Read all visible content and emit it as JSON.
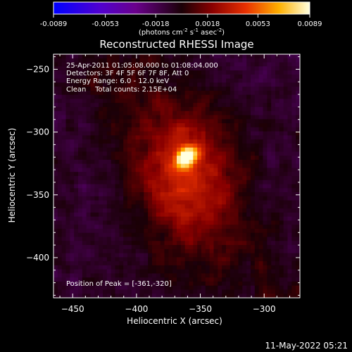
{
  "chart_data": {
    "type": "heatmap",
    "title": "Reconstructed RHESSI Image",
    "xlabel": "Heliocentric X (arcsec)",
    "ylabel": "Heliocentric Y (arcsec)",
    "xlim": [
      -465,
      -272
    ],
    "ylim": [
      -432,
      -238
    ],
    "x_ticks": [
      -450,
      -400,
      -350,
      -300
    ],
    "y_ticks": [
      -250,
      -300,
      -350,
      -400
    ],
    "colorbar": {
      "min": -0.0089,
      "max": 0.0089,
      "ticks": [
        "-0.0089",
        "-0.0053",
        "-0.0018",
        "0.0018",
        "0.0053",
        "0.0089"
      ],
      "unit_text": "(photons cm",
      "unit_exp1": "-2",
      "unit_mid1": " s",
      "unit_exp2": "-1",
      "unit_mid2": " asec",
      "unit_exp3": "-2",
      "unit_end": ")"
    },
    "annotations": [
      "25-Apr-2011 01:05:08.000 to 01:08:04.000",
      "Detectors: 3F 4F 5F 6F 7F 8F, Att 0",
      "Energy Range: 6.0 - 12.0 keV",
      "Clean    Total counts: 2.15E+04"
    ],
    "peak_text": "Position of Peak = [-361,-320]",
    "peak": {
      "x": -361,
      "y": -320,
      "value": 0.0089
    },
    "source_sigma_x": 16,
    "source_sigma_y": 22,
    "date_stamp": "11-May-2022 05:21"
  }
}
